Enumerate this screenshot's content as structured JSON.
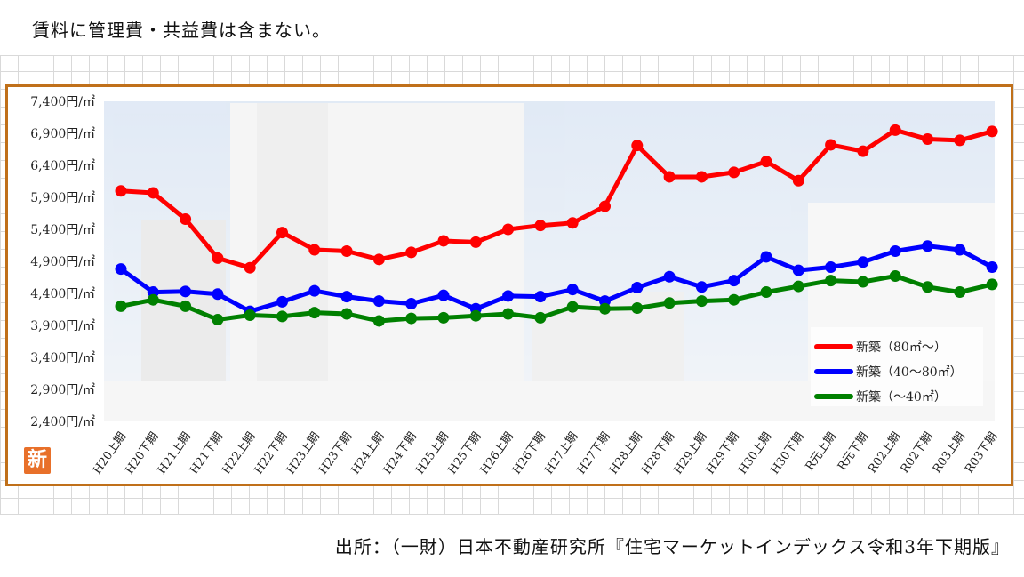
{
  "note_text": "賃料に管理費・共益費は含まない。",
  "source_text": "出所：（一財）日本不動産研究所『住宅マーケットインデックス令和3年下期版』",
  "badge_text": "新",
  "chart_data": {
    "type": "line",
    "title": "",
    "xlabel": "",
    "ylabel": "",
    "ylim": [
      2400,
      7400
    ],
    "yticks": [
      7400,
      6900,
      6400,
      5900,
      5400,
      4900,
      4400,
      3900,
      3400,
      2900,
      2400
    ],
    "ytick_labels": [
      "7,400円/㎡",
      "6,900円/㎡",
      "6,400円/㎡",
      "5,900円/㎡",
      "5,400円/㎡",
      "4,900円/㎡",
      "4,400円/㎡",
      "3,900円/㎡",
      "3,400円/㎡",
      "2,900円/㎡",
      "2,400円/㎡"
    ],
    "grid": false,
    "legend_position": "bottom-right",
    "categories": [
      "H20上期",
      "H20下期",
      "H21上期",
      "H21下期",
      "H22上期",
      "H22下期",
      "H23上期",
      "H23下期",
      "H24上期",
      "H24下期",
      "H25上期",
      "H25下期",
      "H26上期",
      "H26下期",
      "H27上期",
      "H27下期",
      "H28上期",
      "H28下期",
      "H29上期",
      "H29下期",
      "H30上期",
      "H30下期",
      "R元上期",
      "R元下期",
      "R02上期",
      "R02下期",
      "R03上期",
      "R03下期"
    ],
    "series": [
      {
        "name": "新築（80㎡～）",
        "color": "#ff0000",
        "values": [
          6000,
          5970,
          5560,
          4950,
          4800,
          5350,
          5080,
          5060,
          4930,
          5040,
          5220,
          5200,
          5400,
          5460,
          5500,
          5760,
          6710,
          6220,
          6220,
          6290,
          6460,
          6160,
          6720,
          6620,
          6950,
          6810,
          6790,
          6930
        ]
      },
      {
        "name": "新築（40～80㎡）",
        "color": "#0000ff",
        "values": [
          4780,
          4420,
          4430,
          4390,
          4120,
          4270,
          4440,
          4350,
          4280,
          4240,
          4370,
          4160,
          4360,
          4350,
          4460,
          4280,
          4490,
          4660,
          4500,
          4600,
          4970,
          4760,
          4810,
          4890,
          5060,
          5140,
          5080,
          4810
        ]
      },
      {
        "name": "新築（～40㎡）",
        "color": "#008000",
        "values": [
          4200,
          4300,
          4200,
          3990,
          4060,
          4040,
          4100,
          4080,
          3970,
          4010,
          4020,
          4050,
          4080,
          4020,
          4190,
          4160,
          4170,
          4250,
          4280,
          4300,
          4420,
          4510,
          4600,
          4580,
          4670,
          4500,
          4420,
          4540
        ]
      }
    ]
  }
}
